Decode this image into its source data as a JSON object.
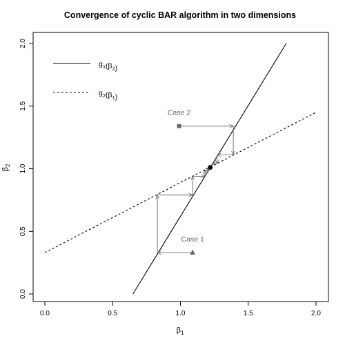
{
  "chart_data": {
    "type": "line",
    "title": "Convergence of cyclic BAR algorithm in two dimensions",
    "xlabel": {
      "base": "β",
      "sub": "1"
    },
    "ylabel": {
      "base": "β",
      "sub": "2"
    },
    "xlim": [
      0.0,
      2.0
    ],
    "ylim": [
      0.0,
      2.0
    ],
    "x_ticks": [
      "0.0",
      "0.5",
      "1.0",
      "1.5",
      "2.0"
    ],
    "y_ticks": [
      "0.0",
      "0.5",
      "1.0",
      "1.5",
      "2.0"
    ],
    "grid": false,
    "legend_position": "top-left",
    "series": [
      {
        "name": "g1(β2)",
        "legend": {
          "base": "g",
          "sub": "1",
          "arg_base": "β",
          "arg_sub": "2"
        },
        "style": "solid",
        "x": [
          0.65,
          1.78
        ],
        "y": [
          0.0,
          2.0
        ]
      },
      {
        "name": "g2(β1)",
        "legend": {
          "base": "g",
          "sub": "2",
          "arg_base": "β",
          "arg_sub": "1"
        },
        "style": "dashed",
        "x": [
          0.0,
          2.0
        ],
        "y": [
          0.33,
          1.45
        ]
      }
    ],
    "paths": [
      {
        "name": "Case 1",
        "start_marker": "triangle",
        "points": [
          [
            1.09,
            0.33
          ],
          [
            0.83,
            0.33
          ],
          [
            0.83,
            0.79
          ],
          [
            1.09,
            0.79
          ],
          [
            1.09,
            0.94
          ],
          [
            1.18,
            0.94
          ],
          [
            1.18,
            0.99
          ],
          [
            1.21,
            0.99
          ]
        ]
      },
      {
        "name": "Case 2",
        "start_marker": "square",
        "points": [
          [
            0.99,
            1.34
          ],
          [
            1.39,
            1.34
          ],
          [
            1.39,
            1.11
          ],
          [
            1.27,
            1.11
          ],
          [
            1.27,
            1.04
          ],
          [
            1.23,
            1.04
          ]
        ]
      }
    ],
    "fixed_point": {
      "x": 1.22,
      "y": 1.01
    },
    "annotations": [
      {
        "text": "Case 2",
        "x": 0.99,
        "y": 1.43
      },
      {
        "text": "Case 1",
        "x": 1.09,
        "y": 0.42
      }
    ]
  }
}
